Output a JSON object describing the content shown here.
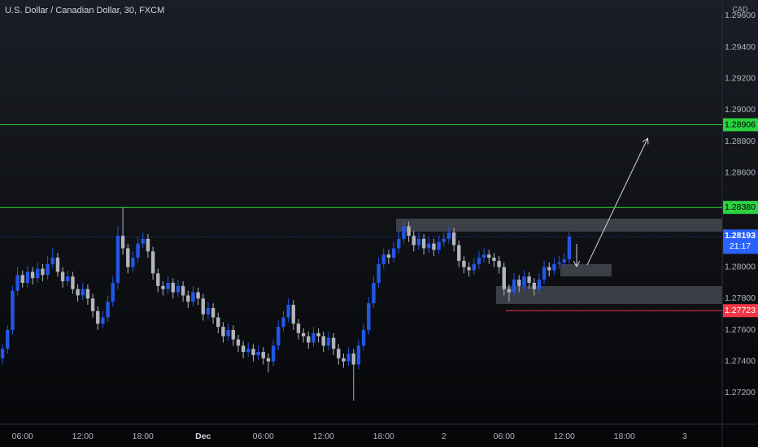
{
  "chart_data": {
    "type": "candlestick",
    "title": "U.S. Dollar / Canadian Dollar, 30, FXCM",
    "currency": "CAD",
    "countdown": "21:17",
    "up_color": "#2157e8",
    "down_color": "#b2b5be",
    "ylim": [
      1.27,
      1.297
    ],
    "yticks": [
      {
        "value": 1.272,
        "label": "1.27200"
      },
      {
        "value": 1.274,
        "label": "1.27400"
      },
      {
        "value": 1.276,
        "label": "1.27600"
      },
      {
        "value": 1.278,
        "label": "1.27800"
      },
      {
        "value": 1.28,
        "label": "1.28000"
      },
      {
        "value": 1.282,
        "label": "1.28200"
      },
      {
        "value": 1.284,
        "label": "1.28400"
      },
      {
        "value": 1.286,
        "label": "1.28600"
      },
      {
        "value": 1.288,
        "label": "1.28800"
      },
      {
        "value": 1.29,
        "label": "1.29000"
      },
      {
        "value": 1.292,
        "label": "1.29200"
      },
      {
        "value": 1.294,
        "label": "1.29400"
      },
      {
        "value": 1.296,
        "label": "1.29600"
      }
    ],
    "horizontal_lines": [
      {
        "value": 1.28906,
        "label": "1.28906",
        "color": "#2bd13f"
      },
      {
        "value": 1.2838,
        "label": "1.28380",
        "color": "#2bd13f"
      },
      {
        "value": 1.27723,
        "label": "1.27723",
        "color": "#f23645"
      }
    ],
    "categories": [
      null,
      null,
      null,
      null,
      "06:00",
      null,
      null,
      null,
      null,
      null,
      null,
      null,
      null,
      null,
      null,
      null,
      "12:00",
      null,
      null,
      null,
      null,
      null,
      null,
      null,
      null,
      null,
      null,
      null,
      "18:00",
      null,
      null,
      null,
      null,
      null,
      null,
      null,
      null,
      null,
      null,
      null,
      "Dec",
      null,
      null,
      null,
      null,
      null,
      null,
      null,
      null,
      null,
      null,
      null,
      "06:00",
      null,
      null,
      null,
      null,
      null,
      null,
      null,
      null,
      null,
      null,
      null,
      "12:00",
      null,
      null,
      null,
      null,
      null,
      null,
      null,
      null,
      null,
      null,
      null,
      "18:00",
      null,
      null,
      null,
      null,
      null,
      null,
      null,
      null,
      null,
      null,
      null,
      "2",
      null,
      null,
      null,
      null,
      null,
      null,
      null,
      null,
      null,
      null,
      null,
      "06:00",
      null,
      null,
      null,
      null,
      null,
      null,
      null,
      null,
      null,
      null,
      null,
      "12:00",
      null,
      null,
      null,
      null,
      null,
      null,
      null,
      null,
      null,
      null,
      null,
      "18:00",
      null,
      null,
      null,
      null,
      null,
      null,
      null,
      null,
      null,
      null,
      null,
      "3",
      null,
      null,
      null,
      null,
      null,
      null,
      null
    ],
    "open": [
      1.2742,
      1.2748,
      1.276,
      1.2785,
      1.2795,
      1.279,
      1.2797,
      1.2793,
      1.2799,
      1.2795,
      1.2802,
      1.2806,
      1.2797,
      1.2791,
      1.2794,
      1.2786,
      1.2782,
      1.2786,
      1.278,
      1.2772,
      1.2764,
      1.2768,
      1.2778,
      1.279,
      1.282,
      1.2812,
      1.28,
      1.2806,
      1.2815,
      1.2818,
      1.281,
      1.2796,
      1.2788,
      1.2786,
      1.279,
      1.2784,
      1.2788,
      1.2782,
      1.2778,
      1.2784,
      1.278,
      1.277,
      1.2774,
      1.2768,
      1.2762,
      1.2756,
      1.276,
      1.2754,
      1.275,
      1.2746,
      1.2748,
      1.2744,
      1.2746,
      1.2742,
      1.274,
      1.275,
      1.2762,
      1.2768,
      1.2776,
      1.2764,
      1.2758,
      1.2756,
      1.2752,
      1.2758,
      1.2756,
      1.275,
      1.2755,
      1.2748,
      1.2742,
      1.274,
      1.2745,
      1.2738,
      1.275,
      1.276,
      1.2777,
      1.279,
      1.2802,
      1.2808,
      1.2806,
      1.2812,
      1.2818,
      1.2826,
      1.282,
      1.2814,
      1.2818,
      1.2812,
      1.2815,
      1.2811,
      1.2816,
      1.2818,
      1.2822,
      1.2814,
      1.2804,
      1.28,
      1.2798,
      1.2802,
      1.2806,
      1.2808,
      1.2806,
      1.2804,
      1.28,
      1.2786,
      1.2784,
      1.2792,
      1.2788,
      1.2794,
      1.279,
      1.2786,
      1.2792,
      1.28,
      1.2798,
      1.2802,
      1.2803,
      1.2805,
      null,
      null,
      null,
      null,
      null,
      null,
      null,
      null,
      null,
      null,
      null,
      null,
      null,
      null,
      null,
      null,
      null,
      null,
      null,
      null,
      null,
      null,
      null,
      null,
      null,
      null,
      null,
      null,
      null,
      null
    ],
    "high": [
      1.2751,
      1.2763,
      1.2788,
      1.28,
      1.2798,
      1.2801,
      1.28,
      1.2803,
      1.2802,
      1.2807,
      1.2812,
      1.2809,
      1.28,
      1.2798,
      1.2797,
      1.2789,
      1.279,
      1.2789,
      1.2783,
      1.2775,
      1.2772,
      1.2782,
      1.2794,
      1.2826,
      1.2838,
      1.2815,
      1.281,
      1.2819,
      1.2822,
      1.2821,
      1.2813,
      1.2799,
      1.2791,
      1.2794,
      1.2793,
      1.2792,
      1.2791,
      1.2785,
      1.2788,
      1.2787,
      1.2783,
      1.2778,
      1.2777,
      1.2771,
      1.2765,
      1.2764,
      1.2763,
      1.2757,
      1.2753,
      1.2752,
      1.2751,
      1.275,
      1.2749,
      1.2745,
      1.2754,
      1.2766,
      1.2772,
      1.278,
      1.2779,
      1.2767,
      1.2761,
      1.2759,
      1.2762,
      1.2761,
      1.2759,
      1.2759,
      1.2758,
      1.2751,
      1.2745,
      1.2749,
      1.2748,
      1.2754,
      1.2764,
      1.2781,
      1.2794,
      1.2806,
      1.2812,
      1.2811,
      1.2816,
      1.2823,
      1.283,
      1.2829,
      1.2823,
      1.2822,
      1.2821,
      1.2819,
      1.2818,
      1.282,
      1.2822,
      1.2826,
      1.2825,
      1.2817,
      1.2807,
      1.2803,
      1.2806,
      1.281,
      1.2812,
      1.2811,
      1.2809,
      1.2807,
      1.2803,
      1.2789,
      1.2796,
      1.2795,
      1.2798,
      1.2797,
      1.2793,
      1.2796,
      1.2804,
      1.2803,
      1.2806,
      1.2807,
      1.2809,
      1.2823,
      null,
      null,
      null,
      null,
      null,
      null,
      null,
      null,
      null,
      null,
      null,
      null,
      null,
      null,
      null,
      null,
      null,
      null,
      null,
      null,
      null,
      null,
      null,
      null,
      null,
      null,
      null,
      null,
      null,
      null
    ],
    "low": [
      1.2738,
      1.2745,
      1.2757,
      1.2782,
      1.2787,
      1.2787,
      1.2789,
      1.279,
      1.2791,
      1.2792,
      1.2799,
      1.2794,
      1.2787,
      1.2788,
      1.2783,
      1.2778,
      1.2779,
      1.2776,
      1.2768,
      1.276,
      1.2761,
      1.2765,
      1.2775,
      1.2786,
      1.2808,
      1.2796,
      1.2797,
      1.2803,
      1.2812,
      1.2806,
      1.2792,
      1.2784,
      1.2782,
      1.2783,
      1.278,
      1.2781,
      1.2778,
      1.2774,
      1.2775,
      1.2776,
      1.2766,
      1.2767,
      1.2764,
      1.2758,
      1.2752,
      1.2753,
      1.275,
      1.2746,
      1.2742,
      1.2743,
      1.274,
      1.2741,
      1.2738,
      1.2733,
      1.2737,
      1.2747,
      1.2759,
      1.2765,
      1.276,
      1.2754,
      1.2752,
      1.2748,
      1.2749,
      1.2752,
      1.2746,
      1.2747,
      1.2744,
      1.2738,
      1.2736,
      1.2737,
      1.2715,
      1.2735,
      1.2747,
      1.2757,
      1.2774,
      1.2787,
      1.2799,
      1.2802,
      1.2803,
      1.2809,
      1.2815,
      1.2816,
      1.281,
      1.2811,
      1.2808,
      1.2809,
      1.2807,
      1.2808,
      1.2813,
      1.2815,
      1.281,
      1.28,
      1.2796,
      1.2794,
      1.2795,
      1.2799,
      1.2803,
      1.2802,
      1.28,
      1.2796,
      1.2782,
      1.2778,
      1.2781,
      1.2784,
      1.2785,
      1.2786,
      1.2782,
      1.2783,
      1.2789,
      1.2794,
      1.2795,
      1.2799,
      1.28,
      1.2802,
      null,
      null,
      null,
      null,
      null,
      null,
      null,
      null,
      null,
      null,
      null,
      null,
      null,
      null,
      null,
      null,
      null,
      null,
      null,
      null,
      null,
      null,
      null,
      null,
      null,
      null,
      null,
      null,
      null,
      null
    ],
    "close": [
      1.2748,
      1.276,
      1.2785,
      1.2795,
      1.279,
      1.2797,
      1.2793,
      1.2799,
      1.2795,
      1.2802,
      1.2806,
      1.2797,
      1.2791,
      1.2794,
      1.2786,
      1.2782,
      1.2786,
      1.278,
      1.2772,
      1.2764,
      1.2768,
      1.2778,
      1.279,
      1.282,
      1.2812,
      1.28,
      1.2806,
      1.2815,
      1.2818,
      1.281,
      1.2796,
      1.2788,
      1.2786,
      1.279,
      1.2784,
      1.2788,
      1.2782,
      1.2778,
      1.2784,
      1.278,
      1.277,
      1.2774,
      1.2768,
      1.2762,
      1.2756,
      1.276,
      1.2754,
      1.275,
      1.2746,
      1.2748,
      1.2744,
      1.2746,
      1.2742,
      1.274,
      1.275,
      1.2762,
      1.2768,
      1.2776,
      1.2764,
      1.2758,
      1.2756,
      1.2752,
      1.2758,
      1.2756,
      1.275,
      1.2755,
      1.2748,
      1.2742,
      1.274,
      1.2745,
      1.2738,
      1.275,
      1.276,
      1.2777,
      1.279,
      1.2802,
      1.2808,
      1.2806,
      1.2812,
      1.2818,
      1.2826,
      1.282,
      1.2814,
      1.2818,
      1.2812,
      1.2815,
      1.2811,
      1.2816,
      1.2818,
      1.2822,
      1.2814,
      1.2804,
      1.28,
      1.2798,
      1.2802,
      1.2806,
      1.2808,
      1.2806,
      1.2804,
      1.28,
      1.2786,
      1.2784,
      1.2792,
      1.2788,
      1.2794,
      1.279,
      1.2786,
      1.2792,
      1.28,
      1.2798,
      1.2802,
      1.2803,
      1.2805,
      1.28193,
      null,
      null,
      null,
      null,
      null,
      null,
      null,
      null,
      null,
      null,
      null,
      null,
      null,
      null,
      null,
      null,
      null,
      null,
      null,
      null,
      null,
      null,
      null,
      null,
      null,
      null,
      null,
      null,
      null,
      null
    ]
  }
}
